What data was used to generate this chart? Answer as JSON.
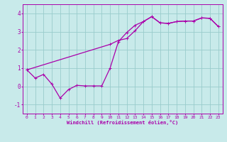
{
  "xlabel": "Windchill (Refroidissement éolien,°C)",
  "xlim": [
    -0.5,
    23.5
  ],
  "ylim": [
    -1.5,
    4.5
  ],
  "yticks": [
    -1,
    0,
    1,
    2,
    3,
    4
  ],
  "xticks": [
    0,
    1,
    2,
    3,
    4,
    5,
    6,
    7,
    8,
    9,
    10,
    11,
    12,
    13,
    14,
    15,
    16,
    17,
    18,
    19,
    20,
    21,
    22,
    23
  ],
  "bg_color": "#c8eaea",
  "line_color": "#aa00aa",
  "grid_color": "#99cccc",
  "line1_x": [
    0,
    1,
    2,
    3,
    4,
    5,
    6,
    7,
    8,
    9,
    10,
    11,
    12,
    13,
    14,
    15,
    16,
    17,
    18,
    19,
    20,
    21,
    22,
    23
  ],
  "line1_y": [
    0.9,
    0.45,
    0.65,
    0.12,
    -0.65,
    -0.18,
    0.05,
    0.02,
    0.02,
    0.02,
    1.0,
    2.45,
    2.95,
    3.35,
    3.55,
    3.82,
    3.48,
    3.45,
    3.55,
    3.58,
    3.58,
    3.75,
    3.73,
    3.28
  ],
  "line2_x": [
    0,
    10,
    11,
    12,
    13,
    14,
    15,
    16,
    17,
    18,
    19,
    20,
    21,
    22,
    23
  ],
  "line2_y": [
    0.9,
    2.3,
    2.52,
    2.62,
    3.05,
    3.55,
    3.82,
    3.48,
    3.45,
    3.55,
    3.58,
    3.58,
    3.75,
    3.73,
    3.28
  ]
}
